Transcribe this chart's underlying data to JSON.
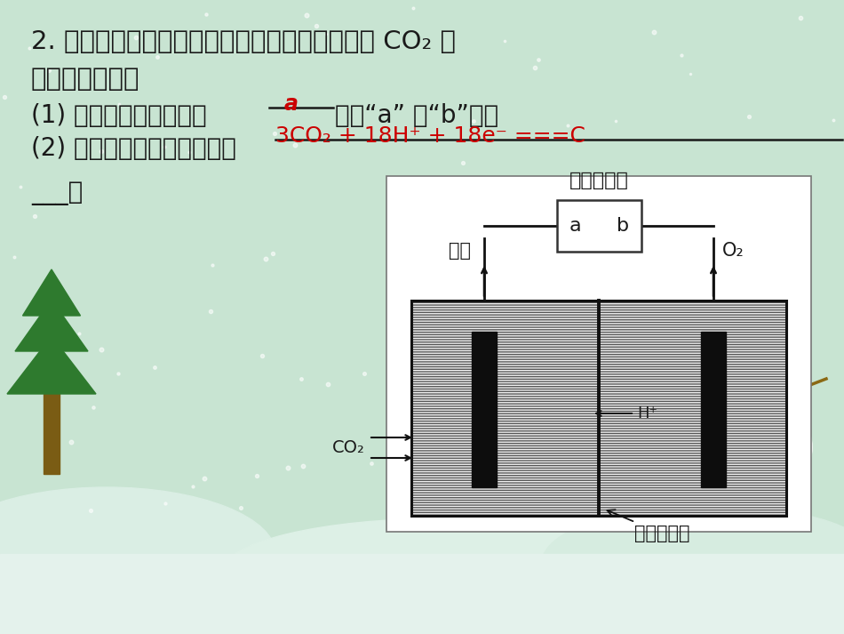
{
  "bg_color": "#d4e8d8",
  "title_text": "2. 在酸性电解质溶液中，以惰性材料作电极，将 CO₂ 转",
  "line2_text": "理如下图所示：",
  "q1_text": "(1) 太阳能电池的负极是",
  "q1_answer": "a",
  "q1_suffix": "（填“a” 或“b”）。",
  "q2_text": "(2) 生成丙烯的电极反应式是",
  "answer_eq": "3CO₂ + 18H⁺ + 18e⁻ ===C",
  "diagram_label_solar": "太阳能电池",
  "diagram_label_propylene": "丙烯",
  "diagram_label_a": "a",
  "diagram_label_b": "b",
  "diagram_label_o2": "O₂",
  "diagram_label_co2": "CO₂",
  "diagram_label_hplus": "H⁺",
  "diagram_label_membrane": "质子交换膜",
  "text_color": "#1a1a1a",
  "red_color": "#cc0000"
}
